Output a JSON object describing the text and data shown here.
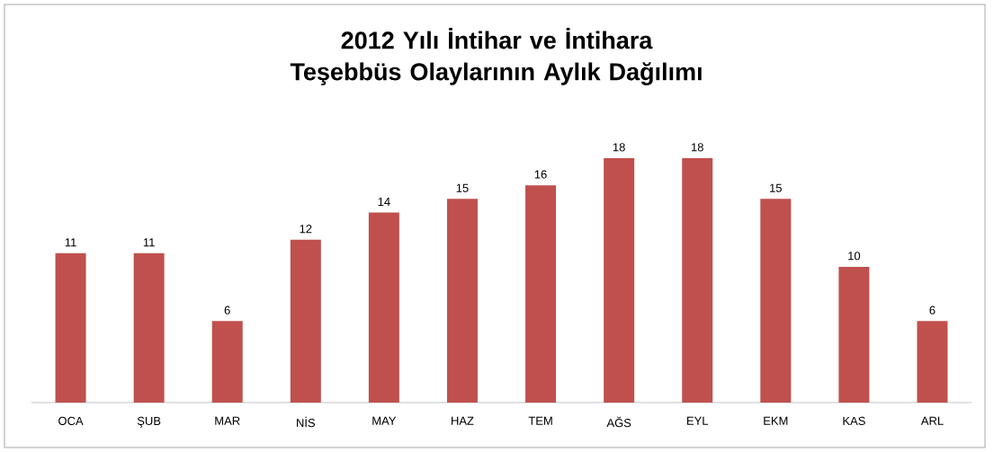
{
  "chart_data": {
    "type": "bar",
    "title": "2012 Yılı İntihar ve İntihara Teşebbüs Olaylarının Aylık Dağılımı",
    "categories": [
      "OCA",
      "ŞUB",
      "MAR",
      "NİS",
      "MAY",
      "HAZ",
      "TEM",
      "AĞS",
      "EYL",
      "EKM",
      "KAS",
      "ARL"
    ],
    "values": [
      11,
      11,
      6,
      12,
      14,
      15,
      16,
      18,
      18,
      15,
      10,
      6
    ],
    "color": "#c0504d",
    "data_labels": true
  }
}
